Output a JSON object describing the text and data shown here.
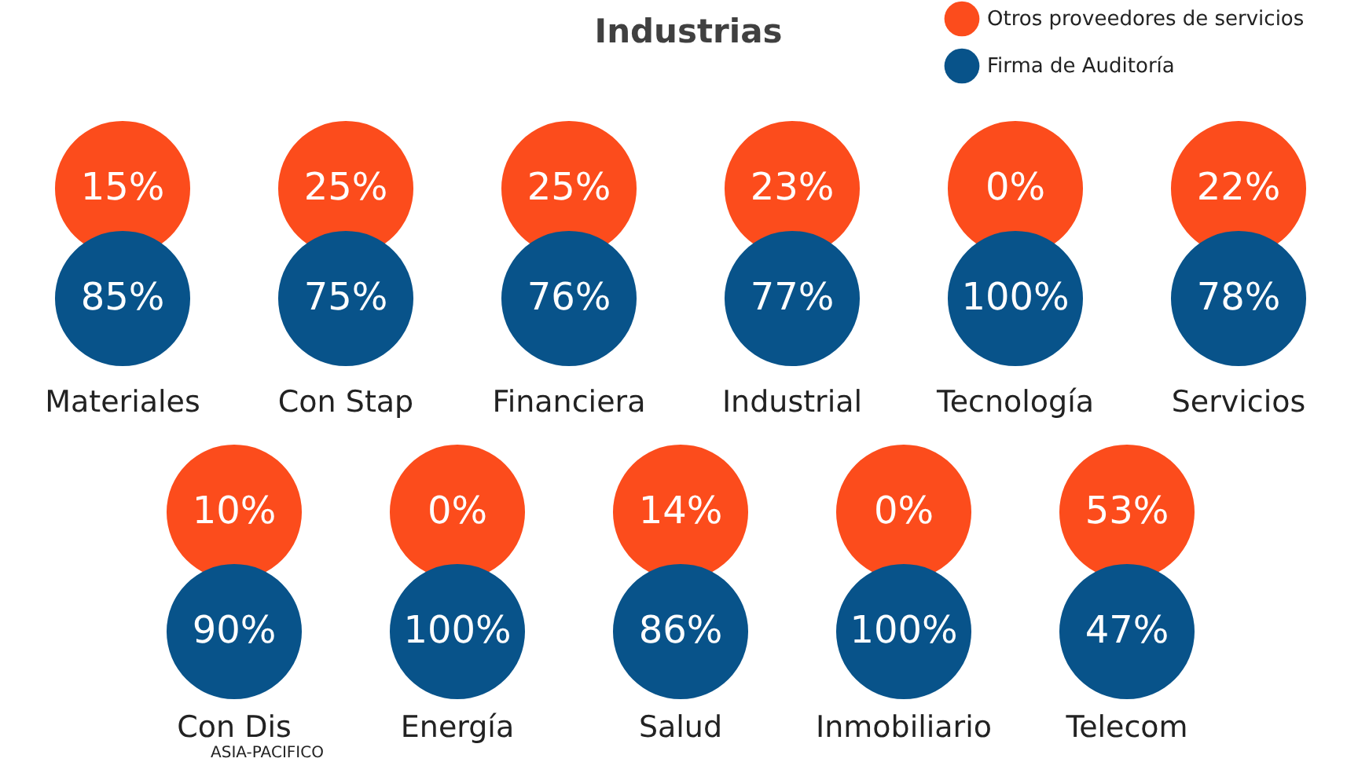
{
  "chart_data": {
    "type": "other",
    "title": "Industrias",
    "categories": [
      "Materiales",
      "Con Stap",
      "Financiera",
      "Industrial",
      "Tecnología",
      "Servicios",
      "Con Dis",
      "Energía",
      "Salud",
      "Inmobiliario",
      "Telecom"
    ],
    "series": [
      {
        "name": "Otros proveedores de servicios",
        "color": "#fc4c1c",
        "values": [
          15,
          25,
          25,
          23,
          0,
          22,
          10,
          0,
          14,
          0,
          53
        ],
        "value_labels": [
          "15%",
          "25%",
          "25%",
          "23%",
          "0%",
          "22%",
          "10%",
          "0%",
          "14%",
          "0%",
          "53%"
        ]
      },
      {
        "name": "Firma de Auditoría",
        "color": "#08538a",
        "values": [
          85,
          75,
          76,
          77,
          100,
          78,
          90,
          100,
          86,
          100,
          47
        ],
        "value_labels": [
          "85%",
          "75%",
          "76%",
          "77%",
          "100%",
          "78%",
          "90%",
          "100%",
          "86%",
          "100%",
          "47%"
        ]
      }
    ],
    "legend": "top right",
    "annotations": [
      "ASIA-PACIFICO"
    ]
  }
}
